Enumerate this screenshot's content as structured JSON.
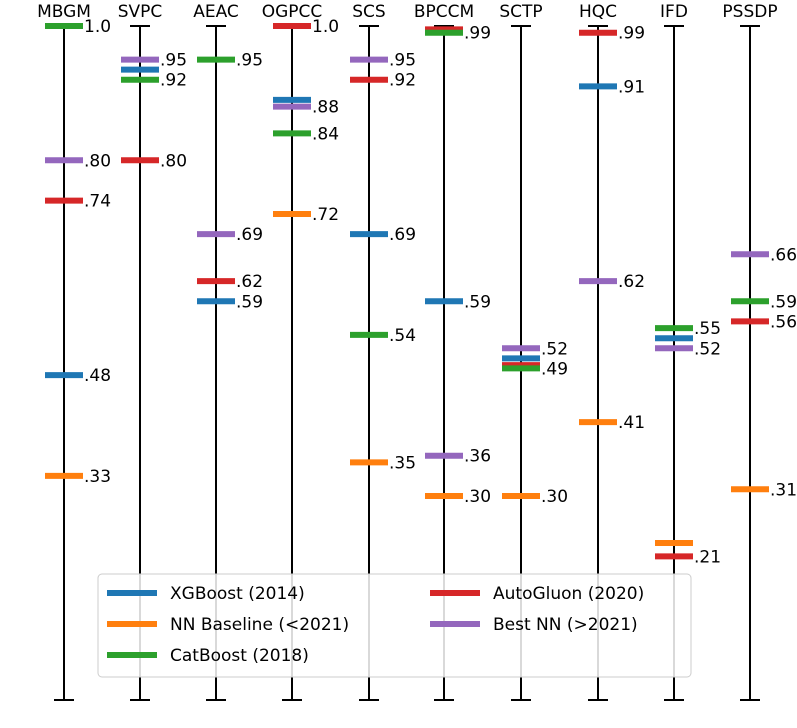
{
  "chart_data": {
    "type": "scatter",
    "description_axis": "normalized score per dataset column",
    "ylim": [
      0,
      1
    ],
    "grid": false,
    "legend_placement": "bottom-center",
    "columns": [
      {
        "name": "MBGM",
        "points": [
          {
            "series": "catboost",
            "value": 1.0,
            "label": "1.0"
          },
          {
            "series": "bestnn",
            "value": 0.8,
            "label": ".80"
          },
          {
            "series": "autogluon",
            "value": 0.74,
            "label": ".74"
          },
          {
            "series": "xgboost",
            "value": 0.48,
            "label": ".48"
          },
          {
            "series": "nnbase",
            "value": 0.33,
            "label": ".33"
          }
        ]
      },
      {
        "name": "SVPC",
        "points": [
          {
            "series": "bestnn",
            "value": 0.95,
            "label": ".95"
          },
          {
            "series": "xgboost",
            "value": 0.935,
            "label": ""
          },
          {
            "series": "catboost",
            "value": 0.92,
            "label": ".92"
          },
          {
            "series": "autogluon",
            "value": 0.8,
            "label": ".80"
          }
        ]
      },
      {
        "name": "AEAC",
        "points": [
          {
            "series": "catboost",
            "value": 0.95,
            "label": ".95"
          },
          {
            "series": "bestnn",
            "value": 0.69,
            "label": ".69"
          },
          {
            "series": "autogluon",
            "value": 0.62,
            "label": ".62"
          },
          {
            "series": "xgboost",
            "value": 0.59,
            "label": ".59"
          }
        ]
      },
      {
        "name": "OGPCC",
        "points": [
          {
            "series": "autogluon",
            "value": 1.0,
            "label": "1.0"
          },
          {
            "series": "xgboost",
            "value": 0.89,
            "label": ""
          },
          {
            "series": "bestnn",
            "value": 0.88,
            "label": ".88"
          },
          {
            "series": "catboost",
            "value": 0.84,
            "label": ".84"
          },
          {
            "series": "nnbase",
            "value": 0.72,
            "label": ".72"
          }
        ]
      },
      {
        "name": "SCS",
        "points": [
          {
            "series": "bestnn",
            "value": 0.95,
            "label": ".95"
          },
          {
            "series": "autogluon",
            "value": 0.92,
            "label": ".92"
          },
          {
            "series": "xgboost",
            "value": 0.69,
            "label": ".69"
          },
          {
            "series": "catboost",
            "value": 0.54,
            "label": ".54"
          },
          {
            "series": "nnbase",
            "value": 0.35,
            "label": ".35"
          }
        ]
      },
      {
        "name": "BPCCM",
        "points": [
          {
            "series": "autogluon",
            "value": 0.995,
            "label": ""
          },
          {
            "series": "catboost",
            "value": 0.99,
            "label": ".99"
          },
          {
            "series": "xgboost",
            "value": 0.59,
            "label": ".59"
          },
          {
            "series": "bestnn",
            "value": 0.36,
            "label": ".36"
          },
          {
            "series": "nnbase",
            "value": 0.3,
            "label": ".30"
          }
        ]
      },
      {
        "name": "SCTP",
        "points": [
          {
            "series": "bestnn",
            "value": 0.52,
            "label": ".52"
          },
          {
            "series": "xgboost",
            "value": 0.505,
            "label": ""
          },
          {
            "series": "autogluon",
            "value": 0.495,
            "label": ""
          },
          {
            "series": "catboost",
            "value": 0.49,
            "label": ".49"
          },
          {
            "series": "nnbase",
            "value": 0.3,
            "label": ".30"
          }
        ]
      },
      {
        "name": "HQC",
        "points": [
          {
            "series": "autogluon",
            "value": 0.99,
            "label": ".99"
          },
          {
            "series": "xgboost",
            "value": 0.91,
            "label": ".91"
          },
          {
            "series": "bestnn",
            "value": 0.62,
            "label": ".62"
          },
          {
            "series": "nnbase",
            "value": 0.41,
            "label": ".41"
          }
        ]
      },
      {
        "name": "IFD",
        "points": [
          {
            "series": "catboost",
            "value": 0.55,
            "label": ".55"
          },
          {
            "series": "xgboost",
            "value": 0.535,
            "label": ""
          },
          {
            "series": "bestnn",
            "value": 0.52,
            "label": ".52"
          },
          {
            "series": "nnbase",
            "value": 0.23,
            "label": ""
          },
          {
            "series": "autogluon",
            "value": 0.21,
            "label": ".21"
          }
        ]
      },
      {
        "name": "PSSDP",
        "points": [
          {
            "series": "bestnn",
            "value": 0.66,
            "label": ".66"
          },
          {
            "series": "catboost",
            "value": 0.59,
            "label": ".59"
          },
          {
            "series": "autogluon",
            "value": 0.56,
            "label": ".56"
          },
          {
            "series": "nnbase",
            "value": 0.31,
            "label": ".31"
          }
        ]
      }
    ],
    "series": [
      {
        "key": "xgboost",
        "name": "XGBoost (2014)",
        "color": "#1f77b4"
      },
      {
        "key": "nnbase",
        "name": "NN Baseline (<2021)",
        "color": "#ff7f0e"
      },
      {
        "key": "catboost",
        "name": "CatBoost (2018)",
        "color": "#2ca02c"
      },
      {
        "key": "autogluon",
        "name": "AutoGluon (2020)",
        "color": "#d62728"
      },
      {
        "key": "bestnn",
        "name": "Best NN (>2021)",
        "color": "#9467bd"
      }
    ],
    "legend_order": [
      "xgboost",
      "autogluon",
      "nnbase",
      "bestnn",
      "catboost"
    ]
  }
}
